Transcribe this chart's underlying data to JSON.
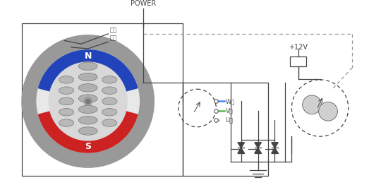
{
  "bg_color": "#ffffff",
  "lc": "#444444",
  "red_color": "#cc2222",
  "blue_color": "#2244bb",
  "gray_ring": "#999999",
  "gray_inner": "#bbbbbb",
  "gray_rotor": "#aaaaaa",
  "w_wire_color": "#4488ff",
  "v_wire_color": "#55bb55",
  "u_wire_color": "#ccbb33",
  "dashed_color": "#999999",
  "rotor_label": "轉子",
  "stator_label": "定子",
  "power_label": "POWER",
  "v12_label": "+12V",
  "w_label": "W相",
  "v_label": "V相",
  "u_label": "U相",
  "N_label": "N",
  "S_label": "S"
}
